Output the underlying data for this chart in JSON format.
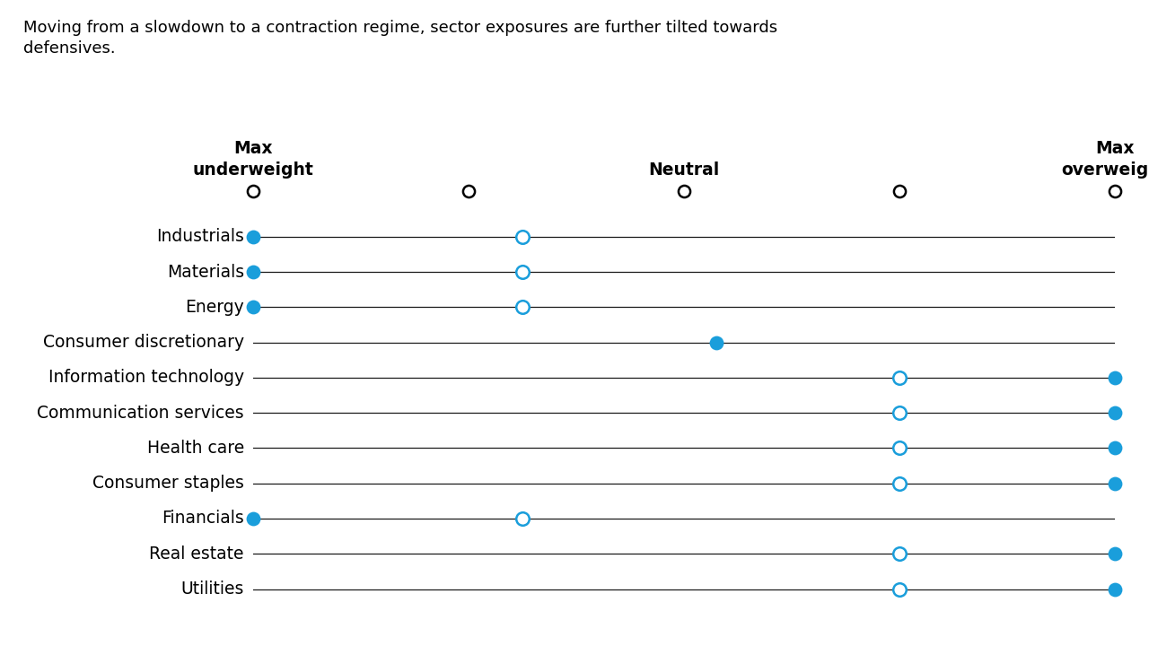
{
  "subtitle": "Moving from a slowdown to a contraction regime, sector exposures are further tilted towards\ndefensives.",
  "xmin": 0,
  "xmax": 4,
  "axis_ticks": [
    0,
    1,
    2,
    3,
    4
  ],
  "sectors": [
    "Industrials",
    "Materials",
    "Energy",
    "Consumer discretionary",
    "Information technology",
    "Communication services",
    "Health care",
    "Consumer staples",
    "Financials",
    "Real estate",
    "Utilities"
  ],
  "dot_filled": [
    {
      "x": 0.0
    },
    {
      "x": 0.0
    },
    {
      "x": 0.0
    },
    {
      "x": 2.15
    },
    {
      "x": 4.0
    },
    {
      "x": 4.0
    },
    {
      "x": 4.0
    },
    {
      "x": 4.0
    },
    {
      "x": 0.0
    },
    {
      "x": 4.0
    },
    {
      "x": 4.0
    }
  ],
  "dot_open": [
    {
      "x": 1.25
    },
    {
      "x": 1.25
    },
    {
      "x": 1.25
    },
    null,
    {
      "x": 3.0
    },
    {
      "x": 3.0
    },
    {
      "x": 3.0
    },
    {
      "x": 3.0
    },
    {
      "x": 1.25
    },
    {
      "x": 3.0
    },
    {
      "x": 3.0
    }
  ],
  "filled_color": "#1a9edb",
  "open_edge_color": "#1a9edb",
  "line_color": "#1a1a1a",
  "axis_line_color": "#000000",
  "background_color": "#ffffff",
  "text_color": "#000000",
  "marker_size_filled": 130,
  "marker_size_open": 110,
  "axis_marker_size": 90,
  "font_size_labels": 13.5,
  "font_size_subtitle": 13,
  "font_size_axis_labels": 13.5
}
